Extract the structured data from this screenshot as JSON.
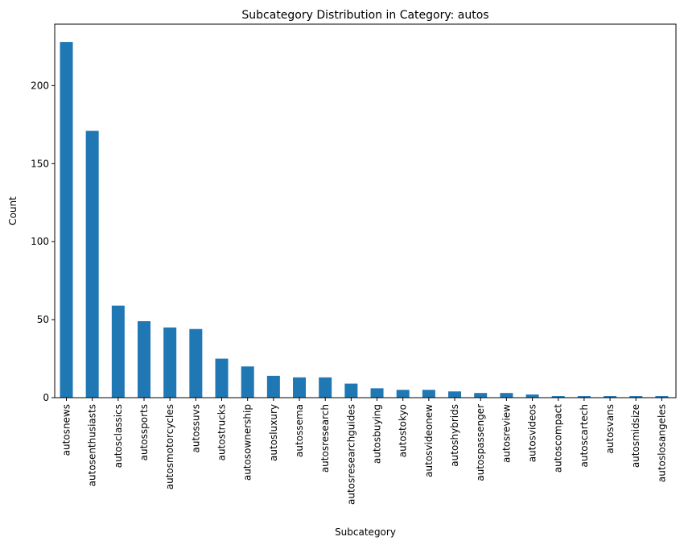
{
  "chart_data": {
    "type": "bar",
    "title": "Subcategory Distribution in Category: autos",
    "xlabel": "Subcategory",
    "ylabel": "Count",
    "ylim": [
      0,
      239.4
    ],
    "yticks": [
      0,
      50,
      100,
      150,
      200
    ],
    "grid": false,
    "legend": "none",
    "bar_color": "#1f77b4",
    "categories": [
      "autosnews",
      "autosenthusiasts",
      "autosclassics",
      "autossports",
      "autosmotorcycles",
      "autossuvs",
      "autostrucks",
      "autosownership",
      "autosluxury",
      "autossema",
      "autosresearch",
      "autosresearchguides",
      "autosbuying",
      "autostokyo",
      "autosvideonew",
      "autoshybrids",
      "autospassenger",
      "autosreview",
      "autosvideos",
      "autoscompact",
      "autoscartech",
      "autosvans",
      "autosmidsize",
      "autoslosangeles"
    ],
    "values": [
      228,
      171,
      59,
      49,
      45,
      44,
      25,
      20,
      14,
      13,
      13,
      9,
      6,
      5,
      5,
      4,
      3,
      3,
      2,
      1,
      1,
      1,
      1,
      1
    ]
  }
}
